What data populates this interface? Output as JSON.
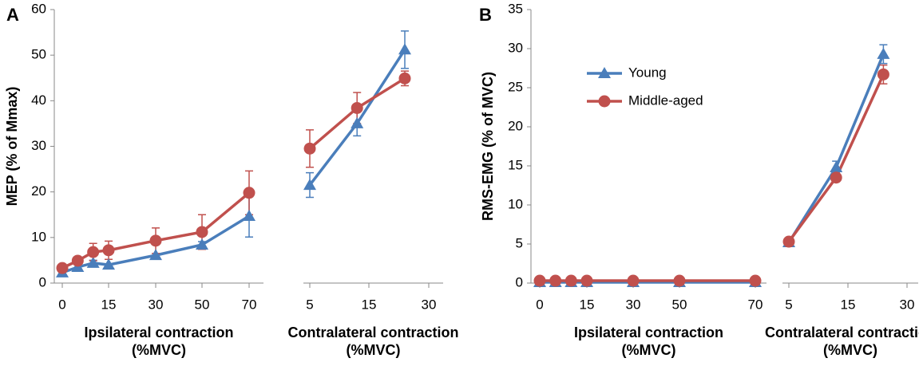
{
  "chart_data": [
    {
      "type": "line",
      "title": "A",
      "y_label": "MEP (% of Mmax)",
      "ylim": [
        0,
        60
      ],
      "yticks": [
        0,
        10,
        20,
        30,
        40,
        50,
        60
      ],
      "x_segments": [
        {
          "label": "Ipsilateral contraction\n(%MVC)",
          "x": [
            0,
            5,
            10,
            15,
            30,
            50,
            70
          ],
          "xticks": [
            0,
            15,
            30,
            50,
            70
          ]
        },
        {
          "label": "Contralateral contraction\n(%MVC)",
          "x": [
            5,
            13,
            24
          ],
          "xticks": [
            5,
            15,
            30
          ]
        }
      ],
      "series": [
        {
          "color": "#4a7ebb",
          "marker": "triangle",
          "segments": [
            {
              "values": [
                2.3,
                3.5,
                4.4,
                4.0,
                6.1,
                8.4,
                14.7
              ],
              "errors": [
                null,
                null,
                0.6,
                null,
                null,
                0.7,
                4.6
              ]
            },
            {
              "values": [
                21.5,
                35.0,
                51.2
              ],
              "errors": [
                2.7,
                2.7,
                4.1
              ]
            }
          ]
        },
        {
          "color": "#c0504d",
          "marker": "circle",
          "segments": [
            {
              "values": [
                3.3,
                4.9,
                6.8,
                7.2,
                9.3,
                11.2,
                19.8
              ],
              "errors": [
                null,
                null,
                1.9,
                2.0,
                2.8,
                3.8,
                4.8
              ]
            },
            {
              "values": [
                29.5,
                38.4,
                44.9
              ],
              "errors": [
                4.1,
                3.4,
                1.6
              ]
            }
          ]
        }
      ]
    },
    {
      "type": "line",
      "title": "B",
      "y_label": "RMS-EMG (% of MVC)",
      "ylim": [
        0,
        35
      ],
      "yticks": [
        0,
        5,
        10,
        15,
        20,
        25,
        30,
        35
      ],
      "legend": "upper left",
      "x_segments": [
        {
          "label": "Ipsilateral contraction\n(%MVC)",
          "x": [
            0,
            5,
            10,
            15,
            30,
            50,
            70
          ],
          "xticks": [
            0,
            15,
            30,
            50,
            70
          ]
        },
        {
          "label": "Contralateral contraction\n(%MVC)",
          "x": [
            5,
            13,
            24
          ],
          "xticks": [
            5,
            15,
            30
          ]
        }
      ],
      "series": [
        {
          "name": "Young",
          "color": "#4a7ebb",
          "marker": "triangle",
          "segments": [
            {
              "values": [
                0.1,
                0.1,
                0.1,
                0.1,
                0.1,
                0.1,
                0.1
              ],
              "errors": [
                null,
                null,
                null,
                null,
                null,
                null,
                null
              ]
            },
            {
              "values": [
                5.2,
                14.8,
                29.3
              ],
              "errors": [
                null,
                0.8,
                1.2
              ]
            }
          ]
        },
        {
          "name": "Middle-aged",
          "color": "#c0504d",
          "marker": "circle",
          "segments": [
            {
              "values": [
                0.3,
                0.3,
                0.3,
                0.3,
                0.3,
                0.3,
                0.3
              ],
              "errors": [
                null,
                null,
                null,
                null,
                null,
                null,
                null
              ]
            },
            {
              "values": [
                5.3,
                13.5,
                26.7
              ],
              "errors": [
                null,
                null,
                1.2
              ]
            }
          ]
        }
      ]
    }
  ]
}
